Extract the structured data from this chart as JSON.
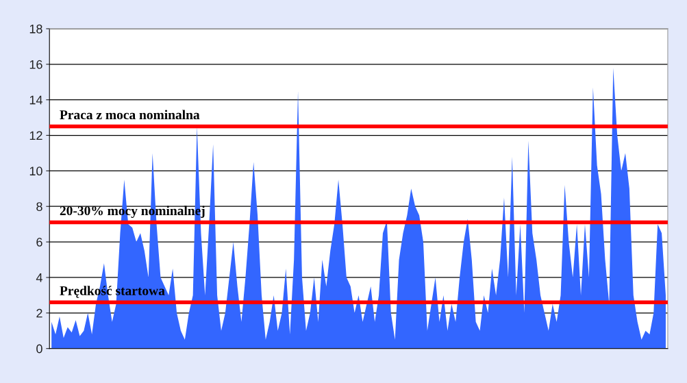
{
  "chart_data": {
    "type": "area",
    "values": [
      1.5,
      0.8,
      1.8,
      0.6,
      1.2,
      0.9,
      1.6,
      0.7,
      1.0,
      2.0,
      0.8,
      2.5,
      3.5,
      4.8,
      3.0,
      1.5,
      2.5,
      6.5,
      9.5,
      7.0,
      6.8,
      6.0,
      6.5,
      5.5,
      4.0,
      11.0,
      7.0,
      4.0,
      3.5,
      3.0,
      4.5,
      2.0,
      1.0,
      0.5,
      2.0,
      3.0,
      12.5,
      6.5,
      3.0,
      7.0,
      11.5,
      3.0,
      1.0,
      2.0,
      4.0,
      6.0,
      3.5,
      1.5,
      4.0,
      7.0,
      10.5,
      7.5,
      3.0,
      0.5,
      1.5,
      3.0,
      1.0,
      2.0,
      4.5,
      0.8,
      5.0,
      14.5,
      4.0,
      1.0,
      2.0,
      4.0,
      1.5,
      5.0,
      3.5,
      5.5,
      7.0,
      9.5,
      7.0,
      4.0,
      3.5,
      2.0,
      3.0,
      1.5,
      2.5,
      3.5,
      1.5,
      3.0,
      6.5,
      7.2,
      2.0,
      0.5,
      5.0,
      6.5,
      7.5,
      9.0,
      8.0,
      7.5,
      6.0,
      1.0,
      2.5,
      4.0,
      1.5,
      3.0,
      1.0,
      2.5,
      1.5,
      4.0,
      6.0,
      7.3,
      5.0,
      1.5,
      1.0,
      3.0,
      2.0,
      4.5,
      3.0,
      5.0,
      8.5,
      4.0,
      10.8,
      3.0,
      7.0,
      2.0,
      11.7,
      6.5,
      5.0,
      3.0,
      2.0,
      1.0,
      2.5,
      1.5,
      3.0,
      9.2,
      6.0,
      4.0,
      7.0,
      3.0,
      7.0,
      4.0,
      14.7,
      10.3,
      8.7,
      5.0,
      2.5,
      15.8,
      12.0,
      10.0,
      11.0,
      9.0,
      3.0,
      1.5,
      0.5,
      1.0,
      0.8,
      2.0,
      7.0,
      6.5,
      3.0
    ],
    "color": "#3366ff",
    "ylim": [
      0,
      18
    ],
    "yticks": [
      0,
      2,
      4,
      6,
      8,
      10,
      12,
      14,
      16,
      18
    ],
    "grid": "y",
    "legend": false,
    "tick_labels": "y",
    "ref_lines": [
      {
        "axis": "y",
        "value": 12.5,
        "label": "Praca z moca nominalna",
        "color": "#ff0000"
      },
      {
        "axis": "y",
        "value": 7.1,
        "label": "20-30% mocy nominalnej",
        "color": "#ff0000"
      },
      {
        "axis": "y",
        "value": 2.6,
        "label": "Prędkość startowa",
        "color": "#ff0000"
      }
    ]
  }
}
